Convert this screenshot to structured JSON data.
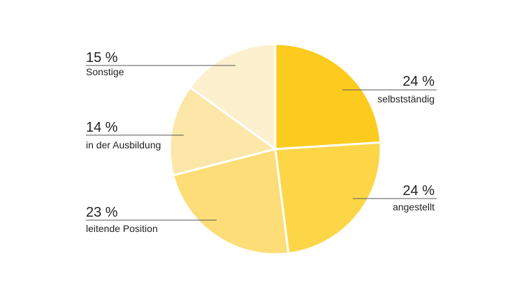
{
  "chart_data": {
    "type": "pie",
    "unit": "%",
    "slices": [
      {
        "label": "selbstständig",
        "value": 24,
        "value_text": "24 %",
        "color": "#FCCB1E"
      },
      {
        "label": "angestellt",
        "value": 24,
        "value_text": "24 %",
        "color": "#FDD648"
      },
      {
        "label": "leitende Position",
        "value": 23,
        "value_text": "23 %",
        "color": "#FDDD78"
      },
      {
        "label": "in der Ausbildung",
        "value": 14,
        "value_text": "14 %",
        "color": "#FDE7A8"
      },
      {
        "label": "Sonstige",
        "value": 15,
        "value_text": "15 %",
        "color": "#FDF0CF"
      }
    ],
    "separator_color": "#FFFFFF"
  }
}
